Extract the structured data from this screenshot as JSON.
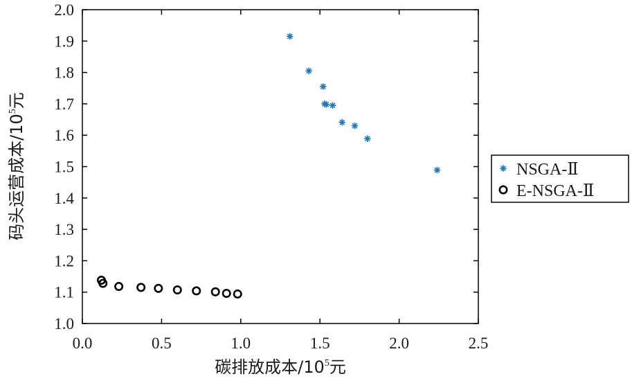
{
  "chart_data": {
    "type": "scatter",
    "xlabel": {
      "main": "碳排放成本/10",
      "sup": "5",
      "tail": "元"
    },
    "ylabel": {
      "main": "码头运营成本/10",
      "sup": "5",
      "tail": "元"
    },
    "xlim": [
      0.0,
      2.5
    ],
    "ylim": [
      1.0,
      2.0
    ],
    "x_ticks": [
      0.0,
      0.5,
      1.0,
      1.5,
      2.0,
      2.5
    ],
    "x_tick_labels": [
      "0.0",
      "0.5",
      "1.0",
      "1.5",
      "2.0",
      "2.5"
    ],
    "y_ticks": [
      1.0,
      1.1,
      1.2,
      1.3,
      1.4,
      1.5,
      1.6,
      1.7,
      1.8,
      1.9,
      2.0
    ],
    "y_tick_labels": [
      "1.0",
      "1.1",
      "1.2",
      "1.3",
      "1.4",
      "1.5",
      "1.6",
      "1.7",
      "1.8",
      "1.9",
      "2.0"
    ],
    "grid": false,
    "legend_position": "outside-right",
    "series": [
      {
        "name": "NSGA-Ⅱ",
        "marker": "asterisk",
        "color": "#1f77b4",
        "x": [
          1.31,
          1.43,
          1.52,
          1.53,
          1.54,
          1.58,
          1.64,
          1.72,
          1.8,
          2.24
        ],
        "y": [
          1.915,
          1.805,
          1.755,
          1.7,
          1.698,
          1.695,
          1.641,
          1.63,
          1.589,
          1.489
        ]
      },
      {
        "name": "E-NSGA-Ⅱ",
        "marker": "circle",
        "color": "#000000",
        "x": [
          0.12,
          0.13,
          0.23,
          0.37,
          0.48,
          0.6,
          0.72,
          0.84,
          0.91,
          0.98
        ],
        "y": [
          1.138,
          1.128,
          1.118,
          1.115,
          1.112,
          1.107,
          1.104,
          1.101,
          1.096,
          1.094
        ]
      }
    ]
  }
}
